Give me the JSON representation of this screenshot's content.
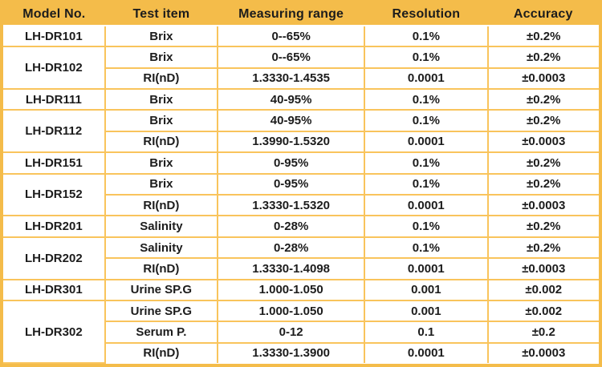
{
  "colors": {
    "header_gold": "#f4bc4a",
    "grid_yellow": "#f9c45c",
    "text": "#1c1c1c",
    "row_background": "#ffffff"
  },
  "table": {
    "columns": [
      "Model No.",
      "Test item",
      "Measuring range",
      "Resolution",
      "Accuracy"
    ],
    "groups": [
      {
        "model": "LH-DR101",
        "rows": [
          [
            "Brix",
            "0--65%",
            "0.1%",
            "±0.2%"
          ]
        ]
      },
      {
        "model": "LH-DR102",
        "rows": [
          [
            "Brix",
            "0--65%",
            "0.1%",
            "±0.2%"
          ],
          [
            "RI(nD)",
            "1.3330-1.4535",
            "0.0001",
            "±0.0003"
          ]
        ]
      },
      {
        "model": "LH-DR111",
        "rows": [
          [
            "Brix",
            "40-95%",
            "0.1%",
            "±0.2%"
          ]
        ]
      },
      {
        "model": "LH-DR112",
        "rows": [
          [
            "Brix",
            "40-95%",
            "0.1%",
            "±0.2%"
          ],
          [
            "RI(nD)",
            "1.3990-1.5320",
            "0.0001",
            "±0.0003"
          ]
        ]
      },
      {
        "model": "LH-DR151",
        "rows": [
          [
            "Brix",
            "0-95%",
            "0.1%",
            "±0.2%"
          ]
        ]
      },
      {
        "model": "LH-DR152",
        "rows": [
          [
            "Brix",
            "0-95%",
            "0.1%",
            "±0.2%"
          ],
          [
            "RI(nD)",
            "1.3330-1.5320",
            "0.0001",
            "±0.0003"
          ]
        ]
      },
      {
        "model": "LH-DR201",
        "rows": [
          [
            "Salinity",
            "0-28%",
            "0.1%",
            "±0.2%"
          ]
        ]
      },
      {
        "model": "LH-DR202",
        "rows": [
          [
            "Salinity",
            "0-28%",
            "0.1%",
            "±0.2%"
          ],
          [
            "RI(nD)",
            "1.3330-1.4098",
            "0.0001",
            "±0.0003"
          ]
        ]
      },
      {
        "model": "LH-DR301",
        "rows": [
          [
            "Urine SP.G",
            "1.000-1.050",
            "0.001",
            "±0.002"
          ]
        ]
      },
      {
        "model": "LH-DR302",
        "rows": [
          [
            "Urine SP.G",
            "1.000-1.050",
            "0.001",
            "±0.002"
          ],
          [
            "Serum P.",
            "0-12",
            "0.1",
            "±0.2"
          ],
          [
            "RI(nD)",
            "1.3330-1.3900",
            "0.0001",
            "±0.0003"
          ]
        ]
      }
    ]
  }
}
